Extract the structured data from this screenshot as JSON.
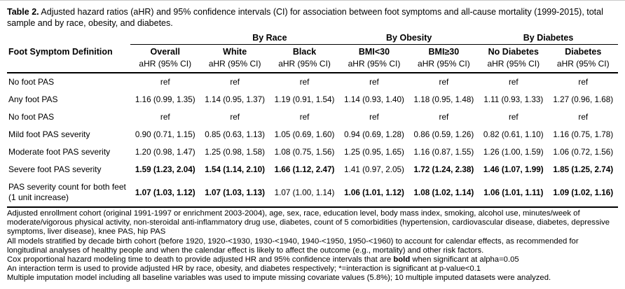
{
  "caption": {
    "label": "Table 2.",
    "text": " Adjusted hazard ratios (aHR) and 95% confidence intervals (CI) for association between foot symptoms and all-cause mortality (1999-2015), total sample and by race, obesity, and diabetes."
  },
  "table": {
    "row_header": "Foot Symptom Definition",
    "group_headers": [
      "By Race",
      "By Obesity",
      "By Diabetes"
    ],
    "columns": [
      "Overall",
      "White",
      "Black",
      "BMI<30",
      "BMI≥30",
      "No Diabetes",
      "Diabetes"
    ],
    "subheader": "aHR (95% CI)",
    "rows": [
      {
        "label": "No foot PAS",
        "values": [
          {
            "text": "ref",
            "bold": false
          },
          {
            "text": "ref",
            "bold": false
          },
          {
            "text": "ref",
            "bold": false
          },
          {
            "text": "ref",
            "bold": false
          },
          {
            "text": "ref",
            "bold": false
          },
          {
            "text": "ref",
            "bold": false
          },
          {
            "text": "ref",
            "bold": false
          }
        ]
      },
      {
        "label": "Any foot PAS",
        "values": [
          {
            "text": "1.16 (0.99, 1.35)",
            "bold": false
          },
          {
            "text": "1.14 (0.95, 1.37)",
            "bold": false
          },
          {
            "text": "1.19 (0.91, 1.54)",
            "bold": false
          },
          {
            "text": "1.14 (0.93, 1.40)",
            "bold": false
          },
          {
            "text": "1.18 (0.95, 1.48)",
            "bold": false
          },
          {
            "text": "1.11 (0.93, 1.33)",
            "bold": false
          },
          {
            "text": "1.27 (0.96, 1.68)",
            "bold": false
          }
        ]
      },
      {
        "label": "No foot PAS",
        "values": [
          {
            "text": "ref",
            "bold": false
          },
          {
            "text": "ref",
            "bold": false
          },
          {
            "text": "ref",
            "bold": false
          },
          {
            "text": "ref",
            "bold": false
          },
          {
            "text": "ref",
            "bold": false
          },
          {
            "text": "ref",
            "bold": false
          },
          {
            "text": "ref",
            "bold": false
          }
        ]
      },
      {
        "label": "Mild foot PAS severity",
        "values": [
          {
            "text": "0.90 (0.71, 1.15)",
            "bold": false
          },
          {
            "text": "0.85 (0.63, 1.13)",
            "bold": false
          },
          {
            "text": "1.05 (0.69, 1.60)",
            "bold": false
          },
          {
            "text": "0.94 (0.69, 1.28)",
            "bold": false
          },
          {
            "text": "0.86 (0.59, 1.26)",
            "bold": false
          },
          {
            "text": "0.82 (0.61, 1.10)",
            "bold": false
          },
          {
            "text": "1.16 (0.75, 1.78)",
            "bold": false
          }
        ]
      },
      {
        "label": "Moderate foot PAS severity",
        "values": [
          {
            "text": "1.20 (0.98, 1.47)",
            "bold": false
          },
          {
            "text": "1.25 (0.98, 1.58)",
            "bold": false
          },
          {
            "text": "1.08 (0.75, 1.56)",
            "bold": false
          },
          {
            "text": "1.25 (0.95, 1.65)",
            "bold": false
          },
          {
            "text": "1.16 (0.87, 1.55)",
            "bold": false
          },
          {
            "text": "1.26 (1.00, 1.59)",
            "bold": false
          },
          {
            "text": "1.06 (0.72, 1.56)",
            "bold": false
          }
        ]
      },
      {
        "label": "Severe foot PAS severity",
        "values": [
          {
            "text": "1.59 (1.23, 2.04)",
            "bold": true
          },
          {
            "text": "1.54 (1.14, 2.10)",
            "bold": true
          },
          {
            "text": "1.66 (1.12, 2.47)",
            "bold": true
          },
          {
            "text": "1.41 (0.97, 2.05)",
            "bold": false
          },
          {
            "text": "1.72 (1.24, 2.38)",
            "bold": true
          },
          {
            "text": "1.46 (1.07, 1.99)",
            "bold": true
          },
          {
            "text": "1.85 (1.25, 2.74)",
            "bold": true
          }
        ]
      },
      {
        "label": "PAS severity count for both feet (1 unit increase)",
        "values": [
          {
            "text": "1.07 (1.03, 1.12)",
            "bold": true
          },
          {
            "text": "1.07 (1.03, 1.13)",
            "bold": true
          },
          {
            "text": "1.07 (1.00, 1.14)",
            "bold": false
          },
          {
            "text": "1.06 (1.01, 1.12)",
            "bold": true
          },
          {
            "text": "1.08 (1.02, 1.14)",
            "bold": true
          },
          {
            "text": "1.06 (1.01, 1.11)",
            "bold": true
          },
          {
            "text": "1.09 (1.02, 1.16)",
            "bold": true
          }
        ]
      }
    ]
  },
  "footnotes": [
    [
      {
        "text": "Adjusted enrollment cohort (original 1991-1997 or enrichment 2003-2004), age, sex, race, education level, body mass index, smoking, alcohol use, minutes/week of moderate/vigorous physical activity, non-steroidal anti-inflammatory drug use, diabetes, count of 5 comorbidities (hypertension, cardiovascular disease, diabetes, depressive symptoms, liver disease), knee PAS, hip PAS",
        "bold": false
      }
    ],
    [
      {
        "text": "All models stratified by decade birth cohort (before 1920, 1920-<1930, 1930-<1940, 1940-<1950, 1950-<1960) to account for calendar effects, as recommended for longitudinal analyses of healthy people and when the calendar effect is likely to affect the outcome (e.g., mortality) and other risk factors.",
        "bold": false
      }
    ],
    [
      {
        "text": "Cox proportional hazard modeling time to death to provide adjusted HR and 95% confidence intervals that are ",
        "bold": false
      },
      {
        "text": "bold",
        "bold": true
      },
      {
        "text": " when significant at alpha=0.05",
        "bold": false
      }
    ],
    [
      {
        "text": "An interaction term is used to provide adjusted HR by race, obesity, and diabetes respectively; *=interaction is significant at p-value<0.1",
        "bold": false
      }
    ],
    [
      {
        "text": "Multiple imputation model including all baseline variables was used to impute missing covariate values (5.8%); 10 multiple imputed datasets were analyzed.",
        "bold": false
      }
    ]
  ]
}
